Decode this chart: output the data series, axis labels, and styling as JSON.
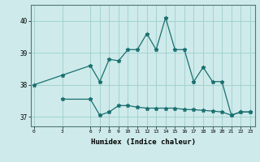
{
  "xlabel": "Humidex (Indice chaleur)",
  "line1_x": [
    0,
    3,
    6,
    7,
    8,
    9,
    10,
    11,
    12,
    13,
    14,
    15,
    16,
    17,
    18,
    19,
    20,
    21,
    22,
    23
  ],
  "line1_y": [
    38.0,
    38.3,
    38.6,
    38.1,
    38.8,
    38.75,
    39.1,
    39.1,
    39.6,
    39.1,
    40.1,
    39.1,
    39.1,
    38.1,
    38.55,
    38.1,
    38.1,
    37.05,
    37.15,
    37.15
  ],
  "line2_x": [
    3,
    6,
    7,
    8,
    9,
    10,
    11,
    12,
    13,
    14,
    15,
    16,
    17,
    18,
    19,
    20,
    21,
    22,
    23
  ],
  "line2_y": [
    37.55,
    37.55,
    37.05,
    37.15,
    37.35,
    37.35,
    37.3,
    37.27,
    37.27,
    37.27,
    37.27,
    37.23,
    37.22,
    37.2,
    37.18,
    37.15,
    37.05,
    37.15,
    37.15
  ],
  "line_color": "#1a7070",
  "bg_color": "#ceeaea",
  "grid_color": "#9ecece",
  "ylim": [
    36.7,
    40.5
  ],
  "yticks": [
    37,
    38,
    39,
    40
  ],
  "xticks": [
    0,
    3,
    6,
    7,
    8,
    9,
    10,
    11,
    12,
    13,
    14,
    15,
    16,
    17,
    18,
    19,
    20,
    21,
    22,
    23
  ],
  "xlim": [
    -0.3,
    23.5
  ]
}
